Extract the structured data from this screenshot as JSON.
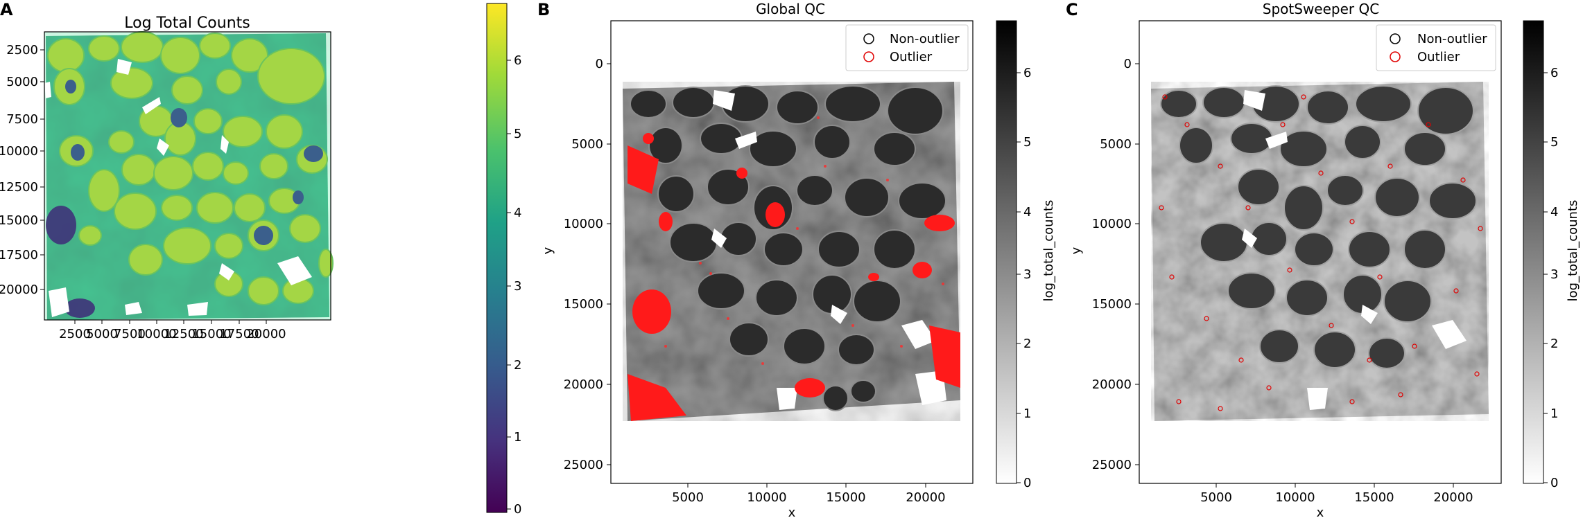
{
  "figure": {
    "panels": [
      {
        "letter": "A",
        "title": "Log Total Counts",
        "xlabel": "",
        "ylabel": "",
        "xticks": [
          "2500",
          "5000",
          "7500",
          "10000",
          "12500",
          "15000",
          "17500",
          "20000"
        ],
        "yticks": [
          "2500",
          "5000",
          "7500",
          "10000",
          "12500",
          "15000",
          "17500",
          "20000"
        ],
        "colormap": "viridis",
        "colorbar": {
          "label": "",
          "ticks": [
            "0",
            "1",
            "2",
            "3",
            "4",
            "5",
            "6"
          ]
        },
        "legend": null
      },
      {
        "letter": "B",
        "title": "Global QC",
        "xlabel": "x",
        "ylabel": "y",
        "xticks": [
          "5000",
          "10000",
          "15000",
          "20000"
        ],
        "yticks": [
          "0",
          "5000",
          "10000",
          "15000",
          "20000",
          "25000"
        ],
        "colormap": "greys",
        "colorbar": {
          "label": "log_total_counts",
          "ticks": [
            "0",
            "1",
            "2",
            "3",
            "4",
            "5",
            "6"
          ]
        },
        "legend": {
          "placement": "top-right",
          "items": [
            {
              "label": "Non-outlier",
              "color": "#000000"
            },
            {
              "label": "Outlier",
              "color": "#e00000"
            }
          ]
        }
      },
      {
        "letter": "C",
        "title": "SpotSweeper QC",
        "xlabel": "x",
        "ylabel": "y",
        "xticks": [
          "5000",
          "10000",
          "15000",
          "20000"
        ],
        "yticks": [
          "0",
          "5000",
          "10000",
          "15000",
          "20000",
          "25000"
        ],
        "colormap": "greys",
        "colorbar": {
          "label": "log_total_counts",
          "ticks": [
            "0",
            "1",
            "2",
            "3",
            "4",
            "5",
            "6"
          ]
        },
        "legend": {
          "placement": "top-right",
          "items": [
            {
              "label": "Non-outlier",
              "color": "#000000"
            },
            {
              "label": "Outlier",
              "color": "#e00000"
            }
          ]
        }
      }
    ]
  }
}
